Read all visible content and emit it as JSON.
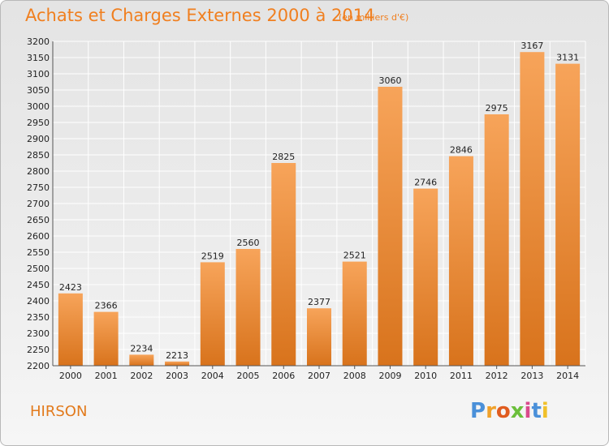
{
  "header": {
    "title": "Achats et Charges Externes 2000 à 2014",
    "subtitle": "(en milliers d'€)"
  },
  "footer": {
    "town": "HIRSON",
    "brand_letters": [
      "P",
      "r",
      "o",
      "x",
      "i",
      "t",
      "i"
    ]
  },
  "colors": {
    "bar_top": "#f7a45a",
    "bar_bottom": "#d8731c",
    "title": "#f07f1f",
    "brand": [
      "#4a90d9",
      "#f0a12a",
      "#e05c1f",
      "#6bbf3b",
      "#d94a8c",
      "#4a90d9",
      "#f0c02a"
    ]
  },
  "chart_data": {
    "type": "bar",
    "title": "Achats et Charges Externes 2000 à 2014",
    "subtitle": "(en milliers d'€)",
    "categories": [
      "2000",
      "2001",
      "2002",
      "2003",
      "2004",
      "2005",
      "2006",
      "2007",
      "2008",
      "2009",
      "2010",
      "2011",
      "2012",
      "2013",
      "2014"
    ],
    "values": [
      2423,
      2366,
      2234,
      2213,
      2519,
      2560,
      2825,
      2377,
      2521,
      3060,
      2746,
      2846,
      2975,
      3167,
      3131
    ],
    "ylim": [
      2200,
      3200
    ],
    "ytick_step": 50,
    "grid": true,
    "xlabel": "",
    "ylabel": ""
  }
}
